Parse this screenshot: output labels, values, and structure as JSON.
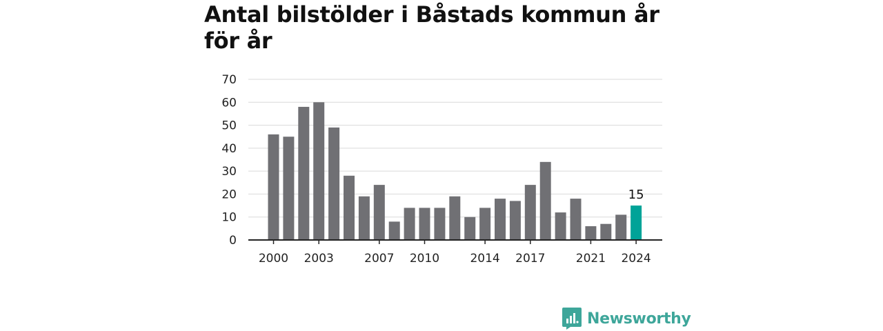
{
  "title": "Antal bilstölder i Båstads kommun år för år",
  "brand": {
    "name": "Newsworthy",
    "logo_icon": "bar-chart-speech-bubble-icon"
  },
  "colors": {
    "bar": "#707074",
    "highlight": "#00a398",
    "grid": "#d9d9d9",
    "axis": "#222222",
    "brand": "#3ea69a"
  },
  "chart_data": {
    "type": "bar",
    "title": "Antal bilstölder i Båstads kommun år för år",
    "categories": [
      "2000",
      "2001",
      "2002",
      "2003",
      "2004",
      "2005",
      "2006",
      "2007",
      "2008",
      "2009",
      "2010",
      "2011",
      "2012",
      "2013",
      "2014",
      "2015",
      "2016",
      "2017",
      "2018",
      "2019",
      "2020",
      "2021",
      "2022",
      "2023",
      "2024"
    ],
    "values": [
      46,
      45,
      58,
      60,
      49,
      28,
      19,
      24,
      8,
      14,
      14,
      14,
      19,
      10,
      14,
      18,
      17,
      24,
      34,
      12,
      18,
      6,
      7,
      11,
      15
    ],
    "x_tick_labels": [
      "2000",
      "2003",
      "2007",
      "2010",
      "2014",
      "2017",
      "2021",
      "2024"
    ],
    "y_ticks": [
      0,
      10,
      20,
      30,
      40,
      50,
      60,
      70
    ],
    "ylim": [
      0,
      70
    ],
    "xlabel": "",
    "ylabel": "",
    "highlight_category": "2024",
    "annotations": [
      {
        "category": "2024",
        "text": "15"
      }
    ],
    "grid": true,
    "legend": "none"
  }
}
